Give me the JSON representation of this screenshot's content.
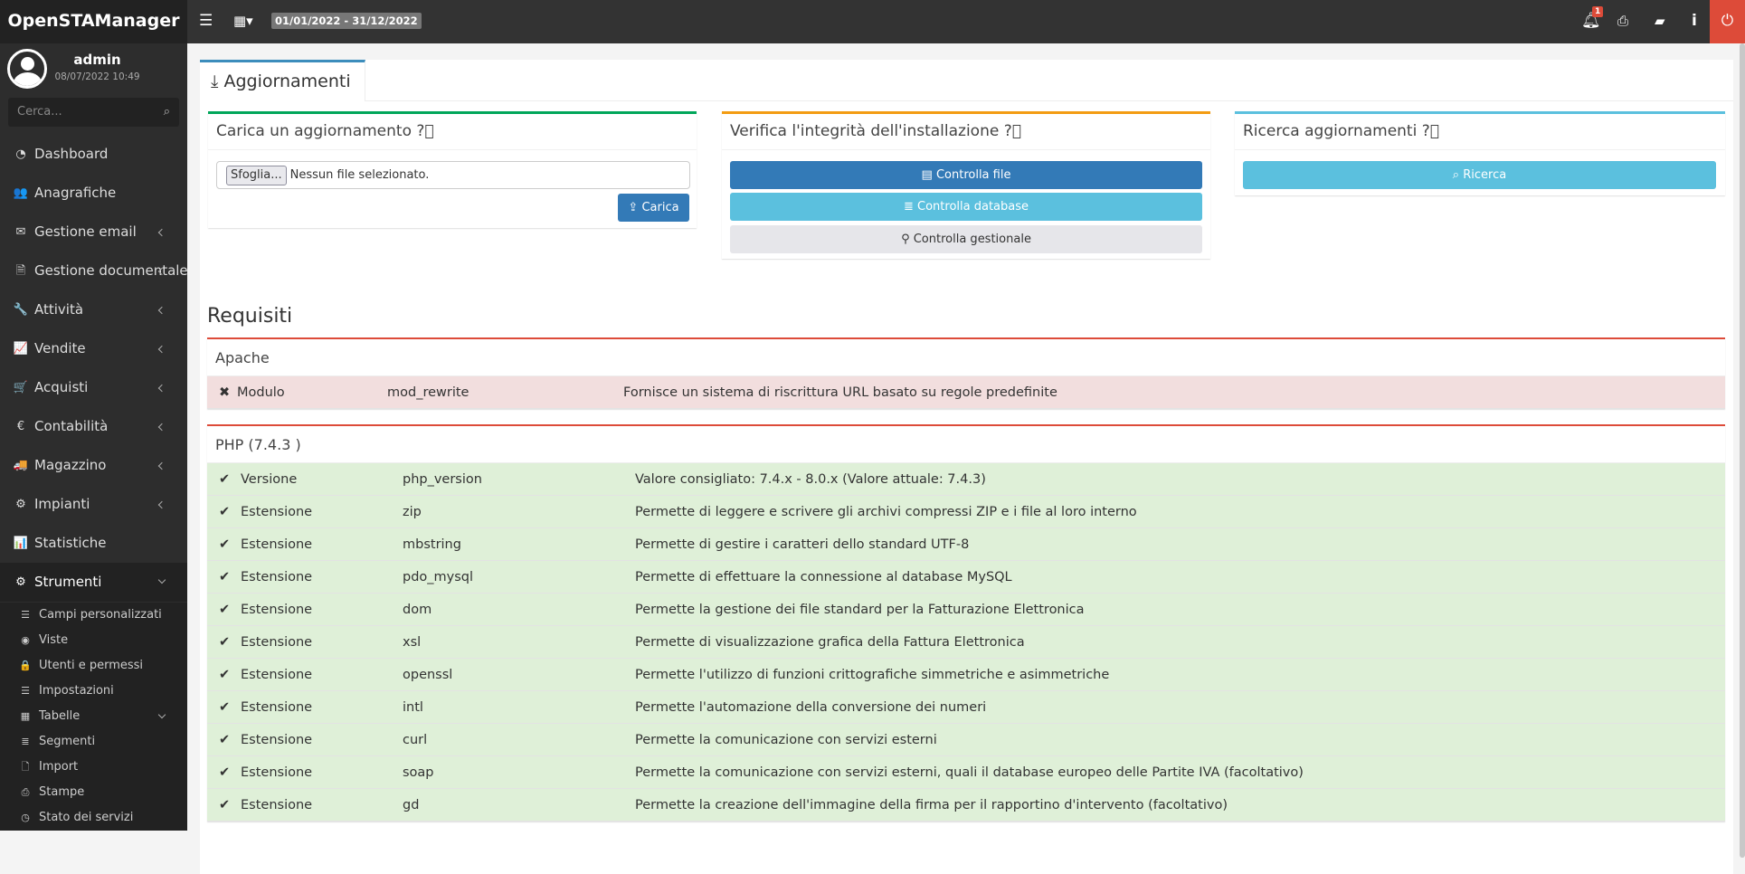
{
  "app": {
    "title": "OpenSTAManager",
    "date_range": "01/01/2022 - 31/12/2022",
    "notifications": "1"
  },
  "user": {
    "name": "admin",
    "datetime": "08/07/2022 10:49"
  },
  "search": {
    "placeholder": "Cerca..."
  },
  "sidebar": {
    "items": [
      {
        "label": "Dashboard",
        "icon": "dashboard-icon",
        "glyph": "◔",
        "chevron": false
      },
      {
        "label": "Anagrafiche",
        "icon": "users-icon",
        "glyph": "👥",
        "chevron": false
      },
      {
        "label": "Gestione email",
        "icon": "envelope-icon",
        "glyph": "✉",
        "chevron": true
      },
      {
        "label": "Gestione documentale",
        "icon": "file-icon",
        "glyph": "🗎",
        "chevron": true
      },
      {
        "label": "Attività",
        "icon": "wrench-icon",
        "glyph": "🔧",
        "chevron": true
      },
      {
        "label": "Vendite",
        "icon": "line-chart-icon",
        "glyph": "📈",
        "chevron": true
      },
      {
        "label": "Acquisti",
        "icon": "cart-icon",
        "glyph": "🛒",
        "chevron": true
      },
      {
        "label": "Contabilità",
        "icon": "euro-icon",
        "glyph": "€",
        "chevron": true
      },
      {
        "label": "Magazzino",
        "icon": "truck-icon",
        "glyph": "🚚",
        "chevron": true
      },
      {
        "label": "Impianti",
        "icon": "sitemap-icon",
        "glyph": "⚙",
        "chevron": true
      },
      {
        "label": "Statistiche",
        "icon": "bar-chart-icon",
        "glyph": "📊",
        "chevron": false
      },
      {
        "label": "Strumenti",
        "icon": "cog-icon",
        "glyph": "⚙",
        "chevron": true,
        "active": true
      }
    ],
    "subitems": [
      {
        "label": "Campi personalizzati",
        "icon": "list-icon",
        "glyph": "☰"
      },
      {
        "label": "Viste",
        "icon": "eye-icon",
        "glyph": "◉"
      },
      {
        "label": "Utenti e permessi",
        "icon": "lock-icon",
        "glyph": "🔒"
      },
      {
        "label": "Impostazioni",
        "icon": "list-alt-icon",
        "glyph": "☰"
      },
      {
        "label": "Tabelle",
        "icon": "table-icon",
        "glyph": "▦",
        "chevron": true
      },
      {
        "label": "Segmenti",
        "icon": "database-icon",
        "glyph": "≣"
      },
      {
        "label": "Import",
        "icon": "file-o-icon",
        "glyph": "🗋"
      },
      {
        "label": "Stampe",
        "icon": "print-icon",
        "glyph": "⎙"
      },
      {
        "label": "Stato dei servizi",
        "icon": "clock-icon",
        "glyph": "◷"
      }
    ]
  },
  "main": {
    "tab": "Aggiornamenti",
    "upload": {
      "title": "Carica un aggiornamento",
      "browse": "Sfoglia...",
      "no_file": "Nessun file selezionato.",
      "button": "Carica"
    },
    "integrity": {
      "title": "Verifica l'integrità dell'installazione",
      "files": "Controlla file",
      "database": "Controlla database",
      "gestionale": "Controlla gestionale"
    },
    "updates": {
      "title": "Ricerca aggiornamenti",
      "button": "Ricerca"
    },
    "requirements_title": "Requisiti",
    "groups": [
      {
        "title": "Apache",
        "rows": [
          {
            "ok": false,
            "type": "Modulo",
            "name": "mod_rewrite",
            "description": "Fornisce un sistema di riscrittura URL basato su regole predefinite"
          }
        ]
      },
      {
        "title": "PHP (7.4.3 )",
        "rows": [
          {
            "ok": true,
            "type": "Versione",
            "name": "php_version",
            "description": "Valore consigliato: 7.4.x - 8.0.x (Valore attuale: 7.4.3)"
          },
          {
            "ok": true,
            "type": "Estensione",
            "name": "zip",
            "description": "Permette di leggere e scrivere gli archivi compressi ZIP e i file al loro interno"
          },
          {
            "ok": true,
            "type": "Estensione",
            "name": "mbstring",
            "description": "Permette di gestire i caratteri dello standard UTF-8"
          },
          {
            "ok": true,
            "type": "Estensione",
            "name": "pdo_mysql",
            "description": "Permette di effettuare la connessione al database MySQL"
          },
          {
            "ok": true,
            "type": "Estensione",
            "name": "dom",
            "description": "Permette la gestione dei file standard per la Fatturazione Elettronica"
          },
          {
            "ok": true,
            "type": "Estensione",
            "name": "xsl",
            "description": "Permette di visualizzazione grafica della Fattura Elettronica"
          },
          {
            "ok": true,
            "type": "Estensione",
            "name": "openssl",
            "description": "Permette l'utilizzo di funzioni crittografiche simmetriche e asimmetriche"
          },
          {
            "ok": true,
            "type": "Estensione",
            "name": "intl",
            "description": "Permette l'automazione della conversione dei numeri"
          },
          {
            "ok": true,
            "type": "Estensione",
            "name": "curl",
            "description": "Permette la comunicazione con servizi esterni"
          },
          {
            "ok": true,
            "type": "Estensione",
            "name": "soap",
            "description": "Permette la comunicazione con servizi esterni, quali il database europeo delle Partite IVA (facoltativo)"
          },
          {
            "ok": true,
            "type": "Estensione",
            "name": "gd",
            "description": "Permette la creazione dell'immagine della firma per il rapportino d'intervento (facoltativo)"
          }
        ]
      }
    ]
  },
  "colors": {
    "primary": "#337ab7",
    "info": "#5bc0de",
    "danger": "#dd4b39",
    "success_row": "#dff0d8",
    "danger_row": "#f2dede"
  }
}
